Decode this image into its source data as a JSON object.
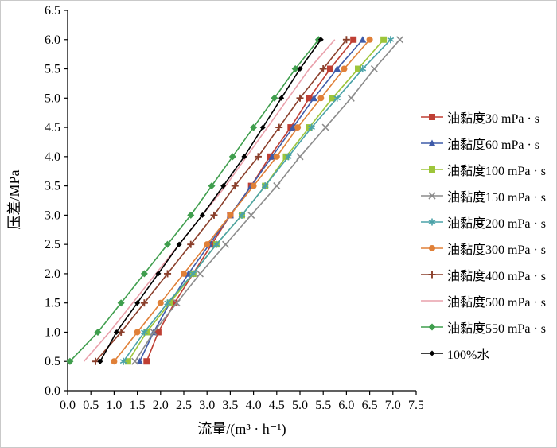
{
  "chart_data": {
    "type": "line",
    "title": "",
    "xlabel": "流量/(m³ · h⁻¹)",
    "ylabel": "压差/MPa",
    "xlim": [
      0,
      7.5
    ],
    "ylim": [
      0,
      6.5
    ],
    "grid": false,
    "legend_position": "right",
    "x_tick_labels": [
      "0.0",
      "0.5",
      "1.0",
      "1.5",
      "2.0",
      "2.5",
      "3.0",
      "3.5",
      "4.0",
      "4.5",
      "5.0",
      "5.5",
      "6.0",
      "6.5",
      "7.0",
      "7.5"
    ],
    "y_tick_labels": [
      "0.0",
      "0.5",
      "1.0",
      "1.5",
      "2.0",
      "2.5",
      "3.0",
      "3.5",
      "4.0",
      "4.5",
      "5.0",
      "5.5",
      "6.0",
      "6.5"
    ],
    "pressure_MPa": [
      0.5,
      1.0,
      1.5,
      2.0,
      2.5,
      3.0,
      3.5,
      4.0,
      4.5,
      5.0,
      5.5,
      6.0
    ],
    "series": [
      {
        "name": "油黏度30 mPa · s",
        "color": "#bf3f34",
        "marker": "square",
        "msize": 4,
        "flow": [
          1.7,
          1.95,
          2.3,
          2.7,
          3.1,
          3.5,
          3.95,
          4.35,
          4.8,
          5.2,
          5.65,
          6.15
        ]
      },
      {
        "name": "油黏度60 mPa · s",
        "color": "#3f5ba9",
        "marker": "triangle",
        "msize": 4.5,
        "flow": [
          1.55,
          1.85,
          2.2,
          2.6,
          3.05,
          3.5,
          3.95,
          4.4,
          4.85,
          5.3,
          5.8,
          6.35
        ]
      },
      {
        "name": "油黏度100 mPa · s",
        "color": "#9dc53a",
        "marker": "square",
        "msize": 4,
        "flow": [
          1.3,
          1.7,
          2.2,
          2.7,
          3.2,
          3.75,
          4.25,
          4.7,
          5.2,
          5.7,
          6.25,
          6.8
        ]
      },
      {
        "name": "油黏度150 mPa · s",
        "color": "#8c8c8c",
        "marker": "x",
        "msize": 4,
        "flow": [
          1.45,
          1.85,
          2.35,
          2.85,
          3.4,
          3.95,
          4.5,
          5.0,
          5.55,
          6.1,
          6.6,
          7.15
        ]
      },
      {
        "name": "油黏度200 mPa · s",
        "color": "#4aa2a8",
        "marker": "asterisk",
        "msize": 4.5,
        "flow": [
          1.2,
          1.65,
          2.15,
          2.7,
          3.2,
          3.75,
          4.25,
          4.75,
          5.25,
          5.8,
          6.35,
          6.95
        ]
      },
      {
        "name": "油黏度300 mPa · s",
        "color": "#e08038",
        "marker": "circle",
        "msize": 4,
        "flow": [
          1.0,
          1.5,
          2.0,
          2.5,
          3.0,
          3.5,
          4.0,
          4.5,
          4.95,
          5.45,
          5.95,
          6.5
        ]
      },
      {
        "name": "油黏度400 mPa · s",
        "color": "#8a3e2a",
        "marker": "plus",
        "msize": 4.5,
        "flow": [
          0.6,
          1.15,
          1.65,
          2.15,
          2.65,
          3.15,
          3.6,
          4.1,
          4.55,
          5.0,
          5.5,
          6.0
        ]
      },
      {
        "name": "油黏度500 mPa · s",
        "color": "#e9a0ab",
        "marker": "none",
        "msize": 4,
        "flow": [
          0.35,
          0.9,
          1.4,
          1.9,
          2.4,
          2.9,
          3.4,
          3.85,
          4.3,
          4.75,
          5.2,
          5.75
        ]
      },
      {
        "name": "油黏度550 mPa · s",
        "color": "#3f9e4d",
        "marker": "diamond",
        "msize": 4.5,
        "flow": [
          0.05,
          0.65,
          1.15,
          1.65,
          2.15,
          2.65,
          3.1,
          3.55,
          4.0,
          4.45,
          4.9,
          5.4
        ]
      },
      {
        "name": "100%水",
        "color": "#000000",
        "marker": "diamond",
        "msize": 3.5,
        "flow": [
          0.7,
          1.05,
          1.5,
          1.95,
          2.4,
          2.9,
          3.35,
          3.8,
          4.2,
          4.6,
          5.0,
          5.45
        ]
      }
    ]
  }
}
